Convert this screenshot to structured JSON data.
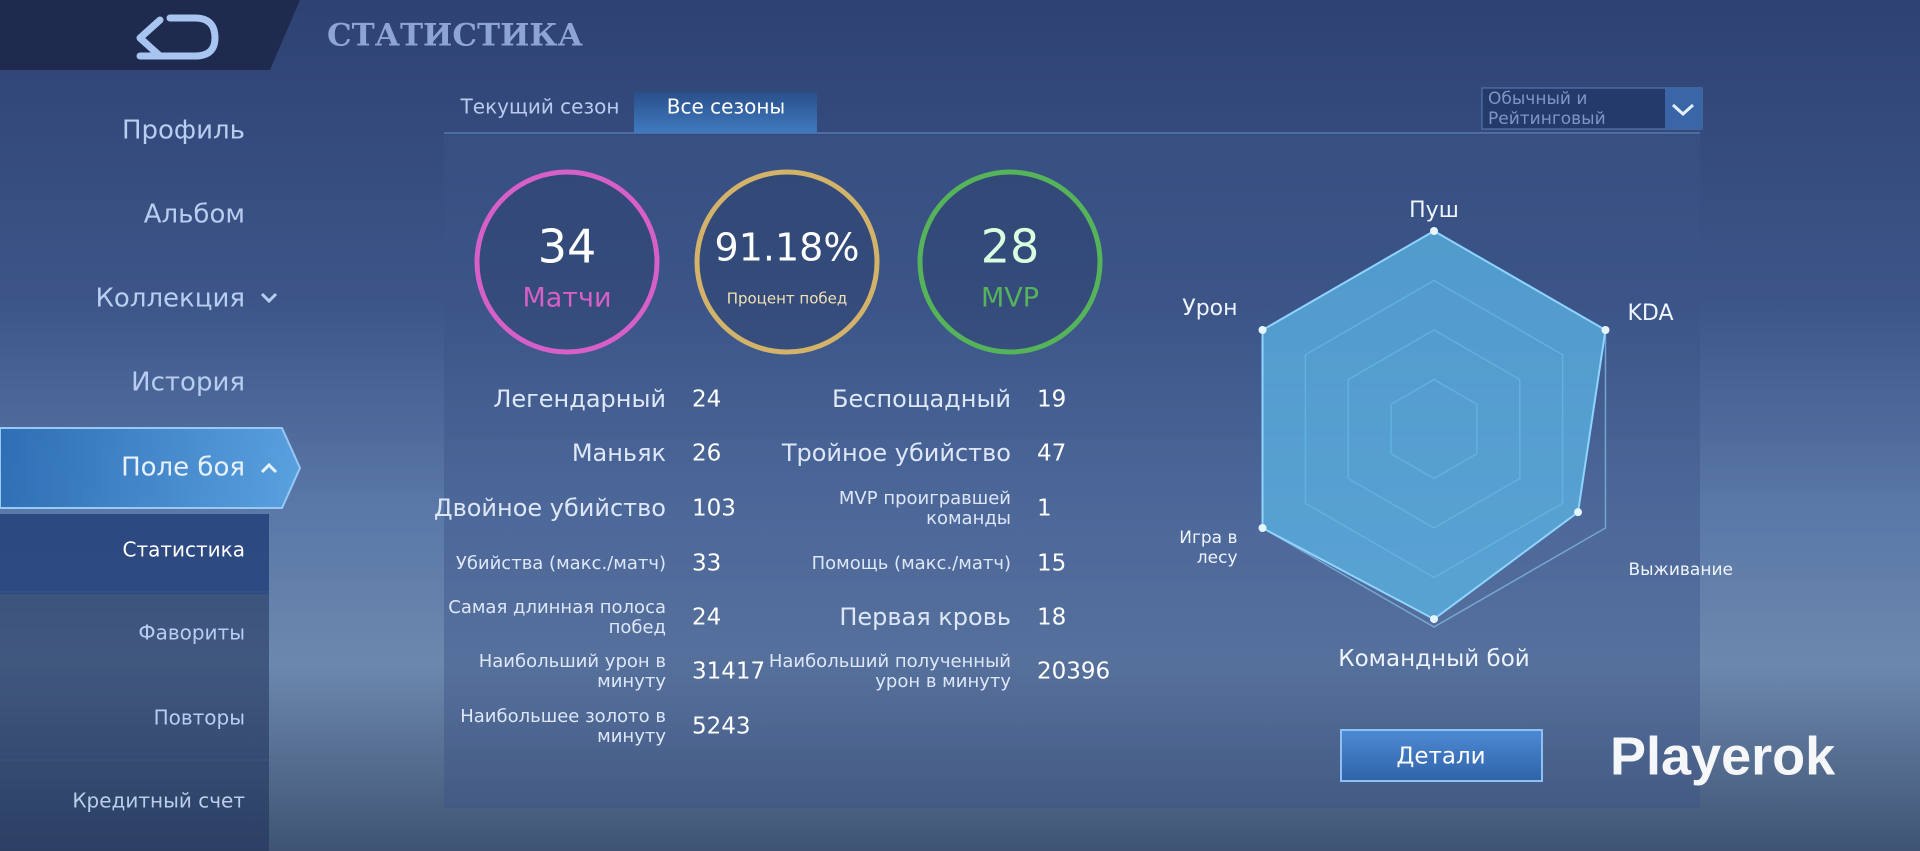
{
  "header": {
    "title": "СТАТИСТИКА"
  },
  "sidebar": {
    "items": [
      "Профиль",
      "Альбом",
      "Коллекция",
      "История",
      "Поле боя",
      "Статистика",
      "Фавориты",
      "Повторы",
      "Кредитный счет"
    ]
  },
  "tabs": [
    "Текущий сезон",
    "Все сезоны"
  ],
  "dropdown": {
    "label": "Обычный и Рейтинговый"
  },
  "summary": [
    {
      "value": 34,
      "label": "Матчи",
      "color": "#d75fc8"
    },
    {
      "value": "91.18%",
      "label": "Процент побед",
      "color": "#d3b36a"
    },
    {
      "value": 28,
      "label": "MVP",
      "color": "#55b35a"
    }
  ],
  "stats": {
    "left": [
      {
        "label": "Легендарный",
        "value": 24
      },
      {
        "label": "Маньяк",
        "value": 26
      },
      {
        "label": "Двойное убийство",
        "value": 103
      },
      {
        "label": "Убийства (макс./матч)",
        "value": 33
      },
      {
        "label": "Самая длинная полоса побед",
        "value": 24
      },
      {
        "label": "Наибольший урон в минуту",
        "value": 31417
      },
      {
        "label": "Наибольшее золото в минуту",
        "value": 5243
      }
    ],
    "right": [
      {
        "label": "Беспощадный",
        "value": 19
      },
      {
        "label": "Тройное убийство",
        "value": 47
      },
      {
        "label": "MVP проигравшей команды",
        "value": 1
      },
      {
        "label": "Помощь (макс./матч)",
        "value": 15
      },
      {
        "label": "Первая кровь",
        "value": 18
      },
      {
        "label": "Наибольший полученный урон в минуту",
        "value": 20396
      }
    ]
  },
  "radar": {
    "type": "radar",
    "axes": [
      "Пуш",
      "KDA",
      "Выживание",
      "Командный бой",
      "Игра в лесу",
      "Урон"
    ],
    "values": [
      100,
      100,
      84,
      96,
      100,
      100
    ],
    "rlim": [
      0,
      100
    ],
    "rticks": [
      25,
      50,
      75,
      100
    ],
    "color": "#5bb4e4"
  },
  "button": {
    "label": "Детали"
  },
  "watermark": "Playerok"
}
